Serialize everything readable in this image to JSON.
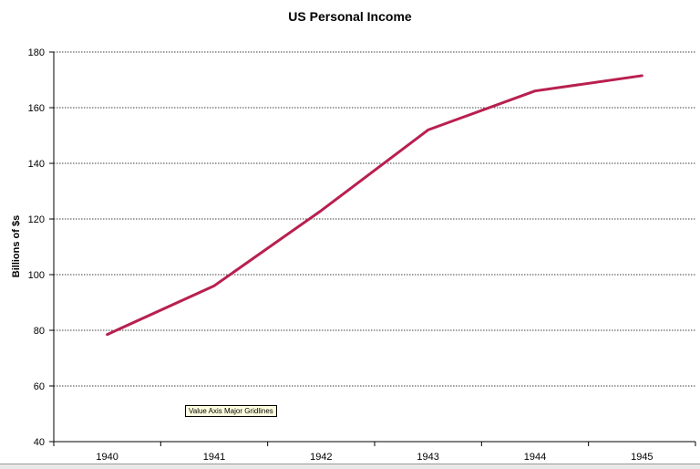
{
  "chart_data": {
    "type": "line",
    "title": "US Personal Income",
    "xlabel": "",
    "ylabel": "Billions of $s",
    "categories": [
      "1940",
      "1941",
      "1942",
      "1943",
      "1944",
      "1945"
    ],
    "series": [
      {
        "values": [
          78.5,
          96,
          123,
          152,
          166,
          171.5
        ],
        "color": "#b8204f"
      }
    ],
    "ylim": [
      40,
      180
    ],
    "yticks": [
      40,
      60,
      80,
      100,
      120,
      140,
      160,
      180
    ],
    "grid": true,
    "legend": "none"
  },
  "tooltip": {
    "text": "Value Axis Major Gridlines"
  }
}
